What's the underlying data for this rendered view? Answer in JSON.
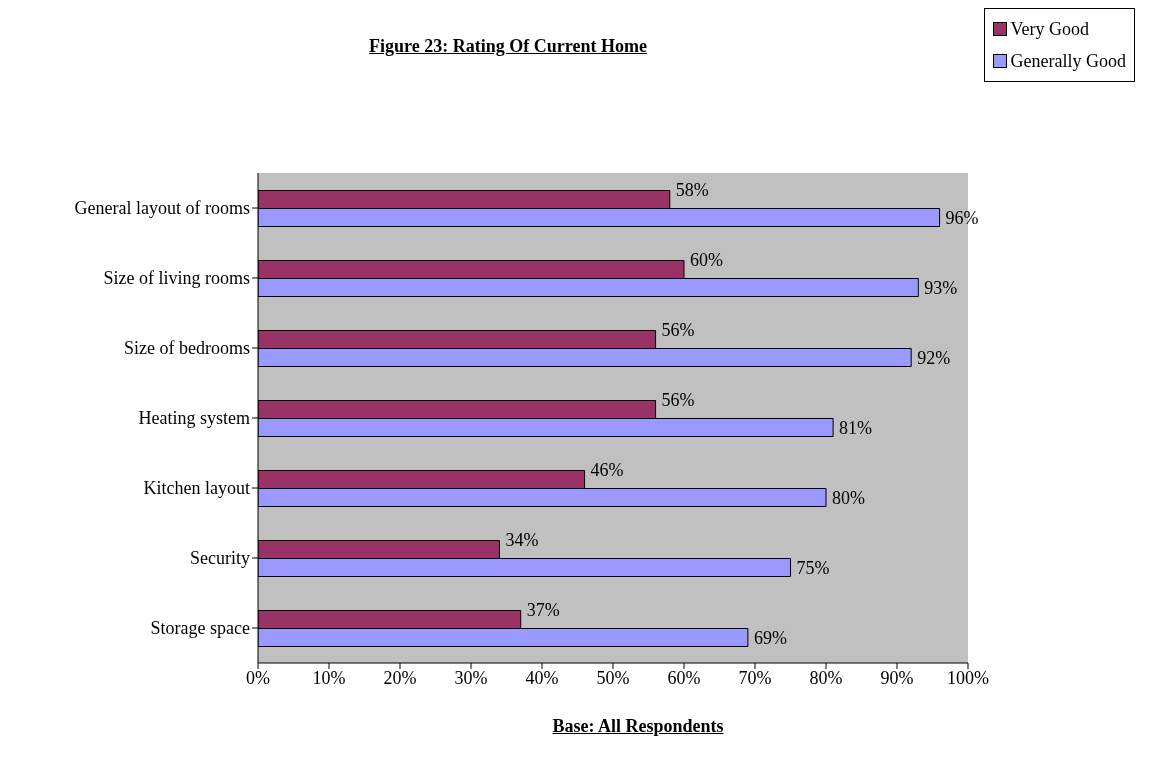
{
  "chart_data": {
    "type": "bar",
    "orientation": "horizontal",
    "title": "Figure 23:  Rating Of Current Home",
    "categories": [
      "General layout of rooms",
      "Size of living rooms",
      "Size of bedrooms",
      "Heating system",
      "Kitchen layout",
      "Security",
      "Storage space"
    ],
    "series": [
      {
        "name": "Very Good",
        "color": "#993366",
        "values": [
          58,
          60,
          56,
          56,
          46,
          34,
          37
        ],
        "value_labels": [
          "58%",
          "60%",
          "56%",
          "56%",
          "46%",
          "34%",
          "37%"
        ]
      },
      {
        "name": "Generally Good",
        "color": "#9999ff",
        "values": [
          96,
          93,
          92,
          81,
          80,
          75,
          69
        ],
        "value_labels": [
          "96%",
          "93%",
          "92%",
          "81%",
          "80%",
          "75%",
          "69%"
        ]
      }
    ],
    "xlim": [
      0,
      100
    ],
    "xticks": [
      {
        "value": 0,
        "label": "0%"
      },
      {
        "value": 10,
        "label": "10%"
      },
      {
        "value": 20,
        "label": "20%"
      },
      {
        "value": 30,
        "label": "30%"
      },
      {
        "value": 40,
        "label": "40%"
      },
      {
        "value": 50,
        "label": "50%"
      },
      {
        "value": 60,
        "label": "60%"
      },
      {
        "value": 70,
        "label": "70%"
      },
      {
        "value": 80,
        "label": "80%"
      },
      {
        "value": 90,
        "label": "90%"
      },
      {
        "value": 100,
        "label": "100%"
      }
    ],
    "grid": false,
    "legend": "top right",
    "annotations": [
      "Base:  All Respondents"
    ]
  }
}
